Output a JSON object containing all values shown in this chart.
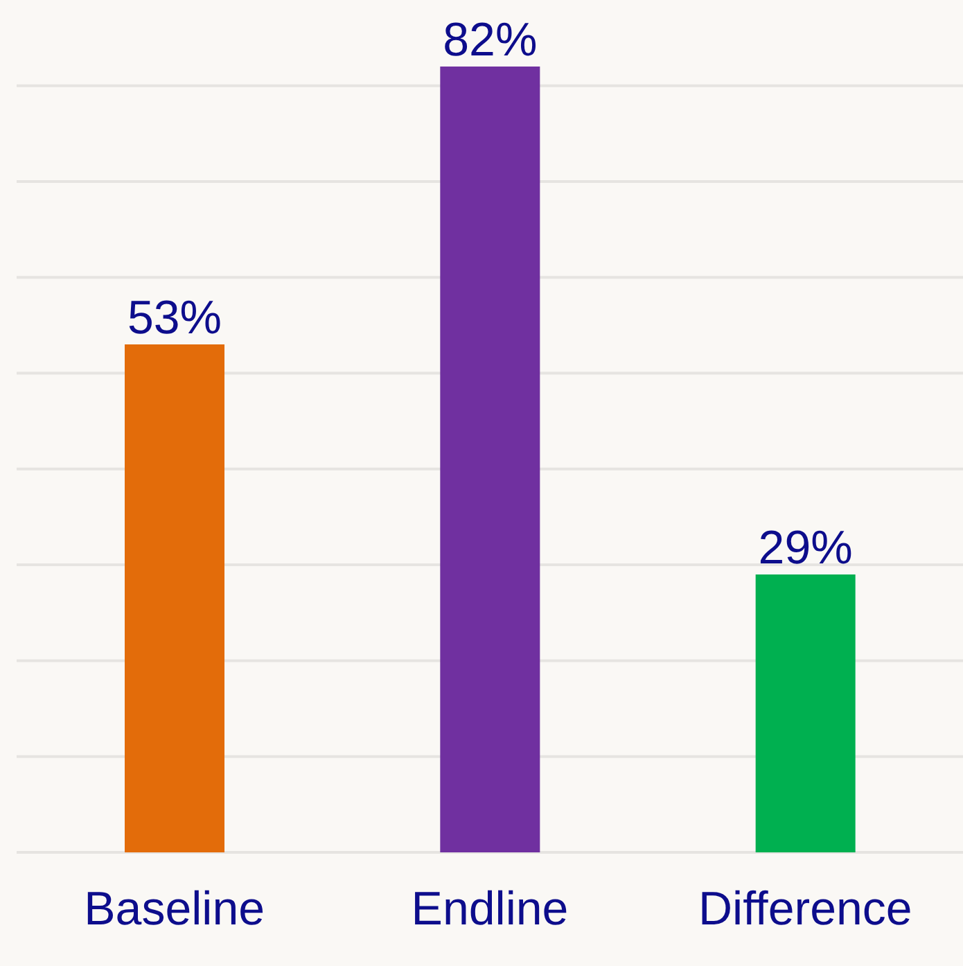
{
  "chart_data": {
    "type": "bar",
    "categories": [
      "Baseline",
      "Endline",
      "Difference"
    ],
    "values": [
      53,
      82,
      29
    ],
    "colors": [
      "#e36c0a",
      "#7030a0",
      "#00b050"
    ],
    "value_labels": [
      "53%",
      "82%",
      "29%"
    ],
    "yticks": [
      {
        "value": 0,
        "label": null
      },
      {
        "value": 10,
        "label": null
      },
      {
        "value": 20,
        "label": null
      },
      {
        "value": 30,
        "label": null
      },
      {
        "value": 40,
        "label": null
      },
      {
        "value": 50,
        "label": null
      },
      {
        "value": 60,
        "label": null
      },
      {
        "value": 70,
        "label": null
      },
      {
        "value": 80,
        "label": null
      }
    ],
    "grid": "y",
    "tick_labels": "x"
  }
}
